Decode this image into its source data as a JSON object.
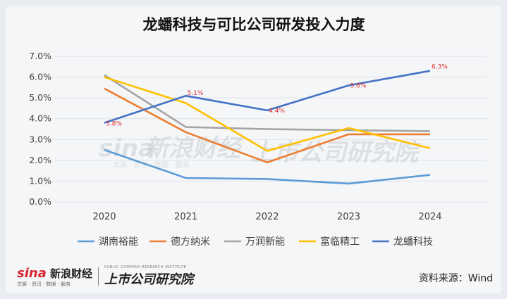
{
  "chart_data": {
    "type": "line",
    "title": "龙蟠科技与可比公司研发投入力度",
    "x": [
      "2020",
      "2021",
      "2022",
      "2023",
      "2024"
    ],
    "y_ticks": [
      "0.0%",
      "1.0%",
      "2.0%",
      "3.0%",
      "4.0%",
      "5.0%",
      "6.0%",
      "7.0%"
    ],
    "ylim": [
      0,
      7
    ],
    "grid": true,
    "legend_position": "bottom",
    "series": [
      {
        "name": "湖南裕能",
        "values": [
          2.5,
          1.15,
          1.1,
          0.88,
          1.3
        ],
        "color": "#5b9bd5"
      },
      {
        "name": "德方纳米",
        "values": [
          5.45,
          3.35,
          1.9,
          3.25,
          3.25
        ],
        "color": "#ed7d31"
      },
      {
        "name": "万润新能",
        "values": [
          6.1,
          3.6,
          3.5,
          3.45,
          3.4
        ],
        "color": "#a5a5a5"
      },
      {
        "name": "富临精工",
        "values": [
          6.0,
          4.75,
          2.45,
          3.55,
          2.58
        ],
        "color": "#ffc000"
      },
      {
        "name": "龙蟠科技",
        "values": [
          3.8,
          5.1,
          4.4,
          5.6,
          6.3
        ],
        "color": "#4472c4",
        "labels": [
          "3.8%",
          "5.1%",
          "4.4%",
          "5.6%",
          "6.3%"
        ]
      }
    ]
  },
  "watermark": {
    "brand": "sina",
    "name": "新浪财经",
    "sub": "文娱 · 资讯 · 数据 · 服务",
    "institute": "上市公司研究院"
  },
  "footer": {
    "logo_mark": "sina",
    "logo_cn": "新浪财经",
    "logo_sub": "文娱 · 资讯 · 数据 · 服务",
    "logo2": "上市公司研究院",
    "logo2_sub": "PUBLIC COMPANY RESEARCH INSTITUTE",
    "source": "资料来源：Wind"
  }
}
